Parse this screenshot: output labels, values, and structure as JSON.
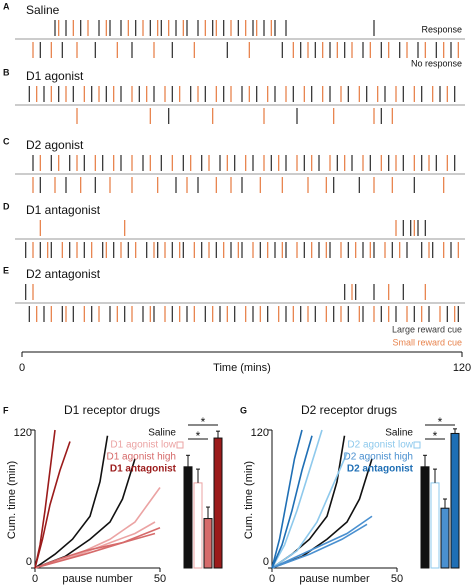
{
  "chart_data": [
    {
      "type": "raster",
      "series": [
        {
          "name": "Large reward cue",
          "color": "#3a3a3a"
        },
        {
          "name": "Small reward cue",
          "color": "#e8844e"
        }
      ],
      "row_labels": [
        "Response",
        "No response"
      ],
      "xlim": [
        0,
        120
      ],
      "xticks": [
        0,
        120
      ],
      "xlabel": "Time (mins)",
      "panels": [
        {
          "letter": "A",
          "title": "Saline",
          "response": [
            [
              9,
              12,
              16,
              21,
              24,
              27,
              31,
              35,
              38,
              42,
              45,
              48,
              52,
              55,
              59,
              63,
              66,
              69,
              72,
              96
            ],
            [
              10,
              14,
              18,
              23,
              29,
              33,
              37,
              40,
              44,
              50,
              53,
              57,
              61,
              64,
              68
            ]
          ],
          "no_response": [
            [
              5,
              11,
              20,
              30,
              41,
              56,
              71,
              76,
              80,
              84,
              88,
              93,
              98,
              103,
              108,
              113,
              117
            ],
            [
              3,
              8,
              15,
              26,
              36,
              47,
              62,
              74,
              78,
              82,
              86,
              90,
              95,
              100,
              105,
              110,
              115,
              119
            ]
          ]
        },
        {
          "letter": "B",
          "title": "D1 agonist",
          "response": [
            [
              2,
              6,
              10,
              14,
              19,
              23,
              27,
              32,
              36,
              41,
              46,
              50,
              55,
              60,
              64,
              69,
              74,
              79,
              84,
              89,
              94,
              99,
              104,
              109,
              114,
              118
            ],
            [
              4,
              8,
              12,
              17,
              21,
              25,
              30,
              34,
              39,
              43,
              48,
              53,
              57,
              62,
              67,
              72,
              77,
              82,
              87,
              92,
              97,
              102,
              107,
              112,
              116
            ]
          ],
          "no_response": [
            [
              40,
              75,
              98
            ],
            [
              15,
              35,
              52,
              66,
              85,
              96,
              101
            ]
          ]
        },
        {
          "letter": "C",
          "title": "D2 agonist",
          "response": [
            [
              3,
              8,
              13,
              17,
              22,
              27,
              33,
              38,
              44,
              49,
              54,
              58,
              63,
              68,
              72,
              77,
              81,
              86,
              90,
              95,
              100,
              104,
              109,
              113,
              118
            ],
            [
              5,
              10,
              15,
              20,
              25,
              30,
              35,
              41,
              46,
              51,
              56,
              61,
              66,
              70,
              75,
              79,
              84,
              88,
              93,
              98,
              102,
              107,
              111,
              116
            ]
          ],
          "no_response": [
            [
              5,
              12,
              20,
              42,
              48,
              60,
              85,
              92,
              107
            ],
            [
              3,
              9,
              16,
              24,
              30,
              37,
              45,
              53,
              57,
              65,
              71,
              78,
              83,
              96,
              101,
              115
            ]
          ]
        },
        {
          "letter": "D",
          "title": "D1 antagonist",
          "response": [
            [
              104,
              106,
              108,
              110
            ],
            [
              5,
              28,
              102,
              107
            ]
          ],
          "no_response": [
            [
              1,
              5,
              8,
              13,
              17,
              22,
              25,
              29,
              34,
              37,
              41,
              44,
              49,
              53,
              57,
              60,
              65,
              69,
              72,
              77,
              81,
              84,
              89,
              93,
              96,
              101,
              105,
              109,
              112,
              117
            ],
            [
              3,
              7,
              11,
              15,
              19,
              23,
              27,
              31,
              36,
              39,
              43,
              47,
              51,
              55,
              59,
              63,
              67,
              71,
              75,
              79,
              83,
              87,
              91,
              95,
              99,
              103,
              111,
              115,
              119
            ]
          ]
        },
        {
          "letter": "E",
          "title": "D2 antagonist",
          "response": [
            [
              1,
              88,
              91,
              96,
              104
            ],
            [
              3,
              90,
              100,
              110
            ]
          ],
          "no_response": [
            [
              2,
              6,
              11,
              14,
              19,
              24,
              28,
              33,
              36,
              41,
              45,
              50,
              54,
              58,
              63,
              67,
              72,
              76,
              80,
              85,
              89,
              93,
              98,
              102,
              107,
              111,
              116,
              119
            ],
            [
              4,
              8,
              12,
              17,
              21,
              26,
              30,
              35,
              39,
              43,
              47,
              52,
              56,
              61,
              65,
              70,
              74,
              78,
              83,
              87,
              92,
              96,
              100,
              105,
              109,
              114,
              118
            ]
          ]
        }
      ]
    },
    {
      "type": "line",
      "letter": "F",
      "title": "D1 receptor drugs",
      "xlabel": "pause number",
      "ylabel": "Cum. time (min)",
      "xlim": [
        0,
        50
      ],
      "xticks": [
        0,
        50
      ],
      "ylim": [
        0,
        120
      ],
      "yticks": [
        0,
        120
      ],
      "series": [
        {
          "name": "Saline",
          "color": "#111111",
          "curves": [
            {
              "x": [
                0,
                8,
                15,
                22,
                26,
                29
              ],
              "values": [
                0,
                12,
                25,
                45,
                75,
                115
              ]
            },
            {
              "x": [
                0,
                12,
                22,
                30,
                35,
                40
              ],
              "values": [
                0,
                10,
                25,
                40,
                60,
                95
              ]
            }
          ]
        },
        {
          "name": "D1 agonist low",
          "color": "#eba3a3",
          "hollow": true,
          "curves": [
            {
              "x": [
                0,
                15,
                30,
                40,
                45,
                50
              ],
              "values": [
                0,
                10,
                25,
                40,
                55,
                70
              ]
            },
            {
              "x": [
                0,
                18,
                30,
                40,
                48
              ],
              "values": [
                0,
                12,
                22,
                30,
                40
              ]
            }
          ]
        },
        {
          "name": "D1 agonist high",
          "color": "#d66a6a",
          "curves": [
            {
              "x": [
                0,
                10,
                20,
                35,
                48
              ],
              "values": [
                0,
                8,
                15,
                22,
                30
              ]
            },
            {
              "x": [
                0,
                20,
                35,
                50
              ],
              "values": [
                0,
                12,
                22,
                35
              ]
            }
          ]
        },
        {
          "name": "D1 antagonist",
          "color": "#9b1b1b",
          "bold": true,
          "curves": [
            {
              "x": [
                0,
                2,
                4,
                6,
                8
              ],
              "values": [
                0,
                20,
                50,
                85,
                120
              ]
            },
            {
              "x": [
                0,
                3,
                6,
                10,
                14
              ],
              "values": [
                0,
                25,
                55,
                85,
                110
              ]
            }
          ]
        }
      ],
      "bars": {
        "values": [
          88,
          74,
          43,
          113
        ],
        "errors": [
          10,
          12,
          10,
          6
        ]
      },
      "significance": [
        {
          "label": "*",
          "pair": [
            0,
            3
          ]
        },
        {
          "label": "*",
          "pair": [
            0,
            2
          ]
        }
      ]
    },
    {
      "type": "line",
      "letter": "G",
      "title": "D2 receptor drugs",
      "xlabel": "pause number",
      "ylabel": "Cum. time (min)",
      "xlim": [
        0,
        50
      ],
      "xticks": [
        0,
        50
      ],
      "ylim": [
        0,
        120
      ],
      "yticks": [
        0,
        120
      ],
      "series": [
        {
          "name": "Saline",
          "color": "#111111",
          "curves": [
            {
              "x": [
                0,
                8,
                15,
                22,
                26,
                29
              ],
              "values": [
                0,
                12,
                25,
                45,
                75,
                115
              ]
            },
            {
              "x": [
                0,
                12,
                22,
                30,
                35,
                40
              ],
              "values": [
                0,
                10,
                25,
                40,
                60,
                95
              ]
            }
          ]
        },
        {
          "name": "D2 agonist low",
          "color": "#8ec9ec",
          "hollow": true,
          "curves": [
            {
              "x": [
                0,
                5,
                10,
                15,
                20
              ],
              "values": [
                0,
                20,
                50,
                85,
                120
              ]
            },
            {
              "x": [
                0,
                10,
                18,
                24,
                30
              ],
              "values": [
                0,
                15,
                40,
                70,
                100
              ]
            }
          ]
        },
        {
          "name": "D2 agonist high",
          "color": "#4a90d0",
          "curves": [
            {
              "x": [
                0,
                10,
                20,
                30,
                40
              ],
              "values": [
                0,
                10,
                20,
                30,
                45
              ]
            },
            {
              "x": [
                0,
                15,
                28,
                38
              ],
              "values": [
                0,
                12,
                25,
                38
              ]
            }
          ]
        },
        {
          "name": "D2 antagonist",
          "color": "#1f6fb5",
          "bold": true,
          "curves": [
            {
              "x": [
                0,
                3,
                6,
                9,
                12
              ],
              "values": [
                0,
                25,
                60,
                95,
                120
              ]
            },
            {
              "x": [
                0,
                4,
                8,
                12,
                16
              ],
              "values": [
                0,
                20,
                50,
                85,
                115
              ]
            }
          ]
        }
      ],
      "bars": {
        "values": [
          88,
          74,
          52,
          117
        ],
        "errors": [
          10,
          12,
          8,
          4
        ]
      },
      "significance": [
        {
          "label": "*",
          "pair": [
            0,
            3
          ]
        },
        {
          "label": "*",
          "pair": [
            0,
            2
          ]
        }
      ]
    }
  ]
}
